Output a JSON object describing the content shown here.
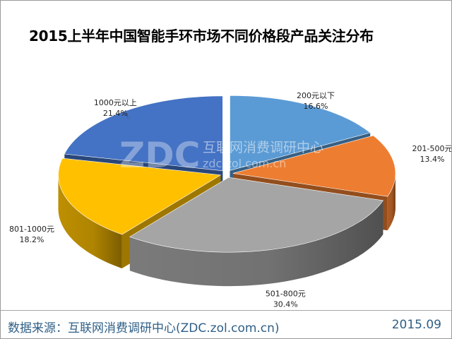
{
  "chart_data": {
    "type": "pie",
    "title": "2015上半年中国智能手环市场不同价格段产品关注分布",
    "categories": [
      "200元以下",
      "201-500元",
      "501-800元",
      "801-1000元",
      "1000元以上"
    ],
    "values": [
      16.6,
      13.4,
      30.4,
      18.2,
      21.4
    ],
    "value_labels": [
      "16.6%",
      "13.4%",
      "30.4%",
      "18.2%",
      "21.4%"
    ],
    "colors": [
      "#5b9bd5",
      "#ed7d31",
      "#a5a5a5",
      "#ffc000",
      "#4472c4"
    ],
    "style": "3d-exploded",
    "legend": "none"
  },
  "watermark": {
    "logo": "ZDC",
    "name": "互联网消费调研中心",
    "url": "zdc.zol.com.cn"
  },
  "footer": {
    "source": "数据来源：互联网消费调研中心(ZDC.zol.com.cn)",
    "date": "2015.09"
  }
}
